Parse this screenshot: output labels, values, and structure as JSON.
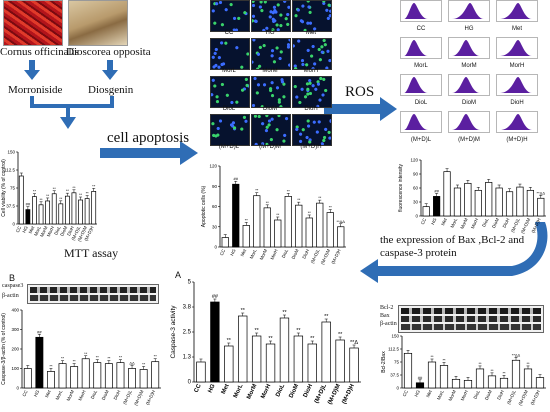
{
  "herbs": {
    "left_name": "Cornus officinalis",
    "right_name": "Dioscorea opposita",
    "left_compound": "Morroniside",
    "right_compound": "Diosgenin"
  },
  "flow_labels": {
    "apoptosis": "cell apoptosis",
    "ros": "ROS",
    "mtt": "MTT assay",
    "bax": "the expression of Bax ,Bcl-2 and caspase-3 protein"
  },
  "micro_labels": [
    "CC",
    "HG",
    "Met",
    "MorL",
    "MorM",
    "MorH",
    "DioL",
    "DioM",
    "DioH",
    "(M+D)L",
    "(M+D)M",
    "(M+D)H"
  ],
  "flow_labels_grid": [
    "CC",
    "HG",
    "Met",
    "MorL",
    "MorM",
    "MorH",
    "DioL",
    "DioM",
    "DioH",
    "(M+D)L",
    "(M+D)M",
    "(M+D)H"
  ],
  "blot_labels": {
    "b": [
      "caspase3",
      "β-actin"
    ],
    "bax": [
      "Bcl-2",
      "Bax",
      "β-actin"
    ]
  },
  "panel_letters": {
    "b": "B",
    "a": "A"
  },
  "colors": {
    "arrow": "#2f6db5",
    "micro_bg": "#06122e",
    "peak": "#5b1fa0"
  },
  "chart_data": [
    {
      "id": "mtt",
      "type": "bar",
      "ylabel": "Cell viability (% of control)",
      "categories": [
        "CC",
        "HG",
        "Met",
        "MorL",
        "MorM",
        "MorH",
        "DioL",
        "DioM",
        "DioH",
        "(M+D)L",
        "(M+D)M",
        "(M+D)H"
      ],
      "values": [
        100,
        30,
        57,
        40,
        48,
        63,
        42,
        58,
        65,
        50,
        53,
        68
      ],
      "ylim": [
        0,
        150
      ],
      "marks": [
        "",
        "##",
        "**",
        "**",
        "**",
        "**",
        "**",
        "**",
        "**",
        "**",
        "**",
        "**"
      ]
    },
    {
      "id": "apoptotic",
      "type": "bar",
      "ylabel": "Apoptotic cells (%)",
      "categories": [
        "CC",
        "HG",
        "Met",
        "MorL",
        "MorM",
        "MorH",
        "DioL",
        "DioM",
        "DioH",
        "(M+D)L",
        "(M+D)M",
        "(M+D)H"
      ],
      "values": [
        14,
        93,
        32,
        76,
        58,
        40,
        75,
        62,
        43,
        65,
        51,
        30
      ],
      "ylim": [
        0,
        120
      ],
      "marks": [
        "",
        "##",
        "**",
        "**",
        "**",
        "**",
        "**",
        "**",
        "**",
        "**",
        "**",
        "**ΔΔ"
      ]
    },
    {
      "id": "ros",
      "type": "bar",
      "ylabel": "fluorescence intensity",
      "categories": [
        "CC",
        "HG",
        "Met",
        "MorL",
        "MorM",
        "MorH",
        "DioL",
        "DioM",
        "DioH",
        "(M+D)L",
        "(M+D)M",
        "(M+D)H"
      ],
      "values": [
        20,
        42,
        95,
        60,
        70,
        55,
        72,
        60,
        52,
        62,
        55,
        38
      ],
      "ylim": [
        0,
        120
      ],
      "marks": [
        "",
        "##",
        "",
        "",
        "",
        "",
        "",
        "",
        "",
        "",
        "",
        "**ΔΔ"
      ]
    },
    {
      "id": "caspase3_protein",
      "type": "bar",
      "ylabel": "Caspase-3/β-actin (% of control)",
      "categories": [
        "CC",
        "HG",
        "Met",
        "MorL",
        "MorM",
        "MorH",
        "DioL",
        "DioM",
        "DioH",
        "(M+D)L",
        "(M+D)M",
        "(M+D)H"
      ],
      "values": [
        100,
        260,
        85,
        125,
        110,
        150,
        130,
        125,
        130,
        100,
        95,
        135
      ],
      "ylim": [
        0,
        400
      ],
      "marks": [
        "",
        "##",
        "**",
        "**",
        "**",
        "**",
        "**",
        "**",
        "**",
        "ΔΔ",
        "**",
        "**"
      ]
    },
    {
      "id": "caspase3_activity",
      "type": "bar",
      "ylabel": "Caspase-3 activity",
      "categories": [
        "CC",
        "HG",
        "Met",
        "MorL",
        "MorM",
        "MorH",
        "DioL",
        "DioM",
        "DioH",
        "(M+D)L",
        "(M+D)M",
        "(M+D)H"
      ],
      "values": [
        1.0,
        4.0,
        1.8,
        3.3,
        2.3,
        1.9,
        3.2,
        2.3,
        1.9,
        3.0,
        2.1,
        1.7
      ],
      "ylim": [
        0,
        5
      ],
      "marks": [
        "",
        "##",
        "**",
        "**",
        "**",
        "**",
        "**",
        "**",
        "**",
        "**",
        "**",
        "**Δ"
      ]
    },
    {
      "id": "bcl2_bax",
      "type": "bar",
      "ylabel": "Bcl-2/Bax",
      "categories": [
        "CC",
        "HG",
        "Met",
        "MorL",
        "MorM",
        "MorH",
        "DioL",
        "DioM",
        "DioH",
        "(M+D)L",
        "(M+D)M",
        "(M+D)H"
      ],
      "values": [
        100,
        15,
        75,
        65,
        25,
        22,
        55,
        35,
        28,
        80,
        55,
        30
      ],
      "ylim": [
        0,
        150
      ],
      "marks": [
        "",
        "##",
        "**",
        "**",
        "",
        "",
        "**",
        "**",
        "**",
        "**ΔΔ",
        "**",
        ""
      ]
    }
  ]
}
